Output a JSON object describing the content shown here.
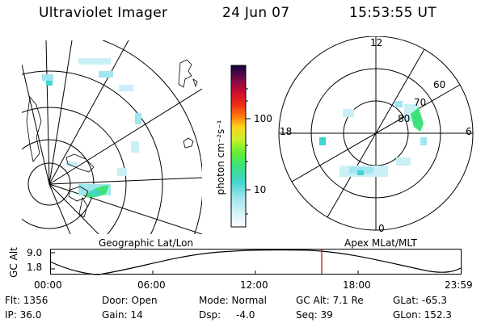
{
  "header": {
    "title": "Ultraviolet Imager",
    "date": "24 Jun 07",
    "time": "15:53:55 UT"
  },
  "colors": {
    "aurora_green": "#33dd33",
    "aurora_cyan": "#33cccc",
    "aurora_pale": "#c8f0f5",
    "time_marker": "#cc0000"
  },
  "colorbar": {
    "label": "photon cm⁻²s⁻¹",
    "ticks": [
      "100",
      "10"
    ],
    "stops": [
      "#ffffff",
      "#d6f3f7",
      "#9fe6ee",
      "#40d6cf",
      "#3de27a",
      "#63ee2e",
      "#c9f02a",
      "#ffd21a",
      "#ff7f10",
      "#ee2a14",
      "#c80a32",
      "#8a0a45",
      "#400646",
      "#10003a"
    ]
  },
  "polar_plot": {
    "mlt_labels": [
      "12",
      "18",
      "6",
      "0"
    ],
    "lat_labels": [
      "60",
      "70",
      "80"
    ]
  },
  "timeline": {
    "left_title": "Geographic Lat/Lon",
    "right_title": "Apex MLat/MLT",
    "ylabel": "GC Alt",
    "y_ticks": [
      "9.0",
      "1.8"
    ],
    "x_ticks": [
      "00:00",
      "06:00",
      "12:00",
      "18:00",
      "23:59"
    ],
    "current_time": "15:53:55"
  },
  "info": {
    "flt": "Flt: 1356",
    "ip": "IP: 36.0",
    "door": "Door: Open",
    "gain": "Gain: 14",
    "mode": "Mode: Normal",
    "dsp_label": "Dsp:",
    "dsp_value": "-4.0",
    "gc_alt": "GC Alt: 7.1 Re",
    "seq": "Seq: 39",
    "glat": "GLat: -65.3",
    "glon": "GLon: 152.3"
  }
}
